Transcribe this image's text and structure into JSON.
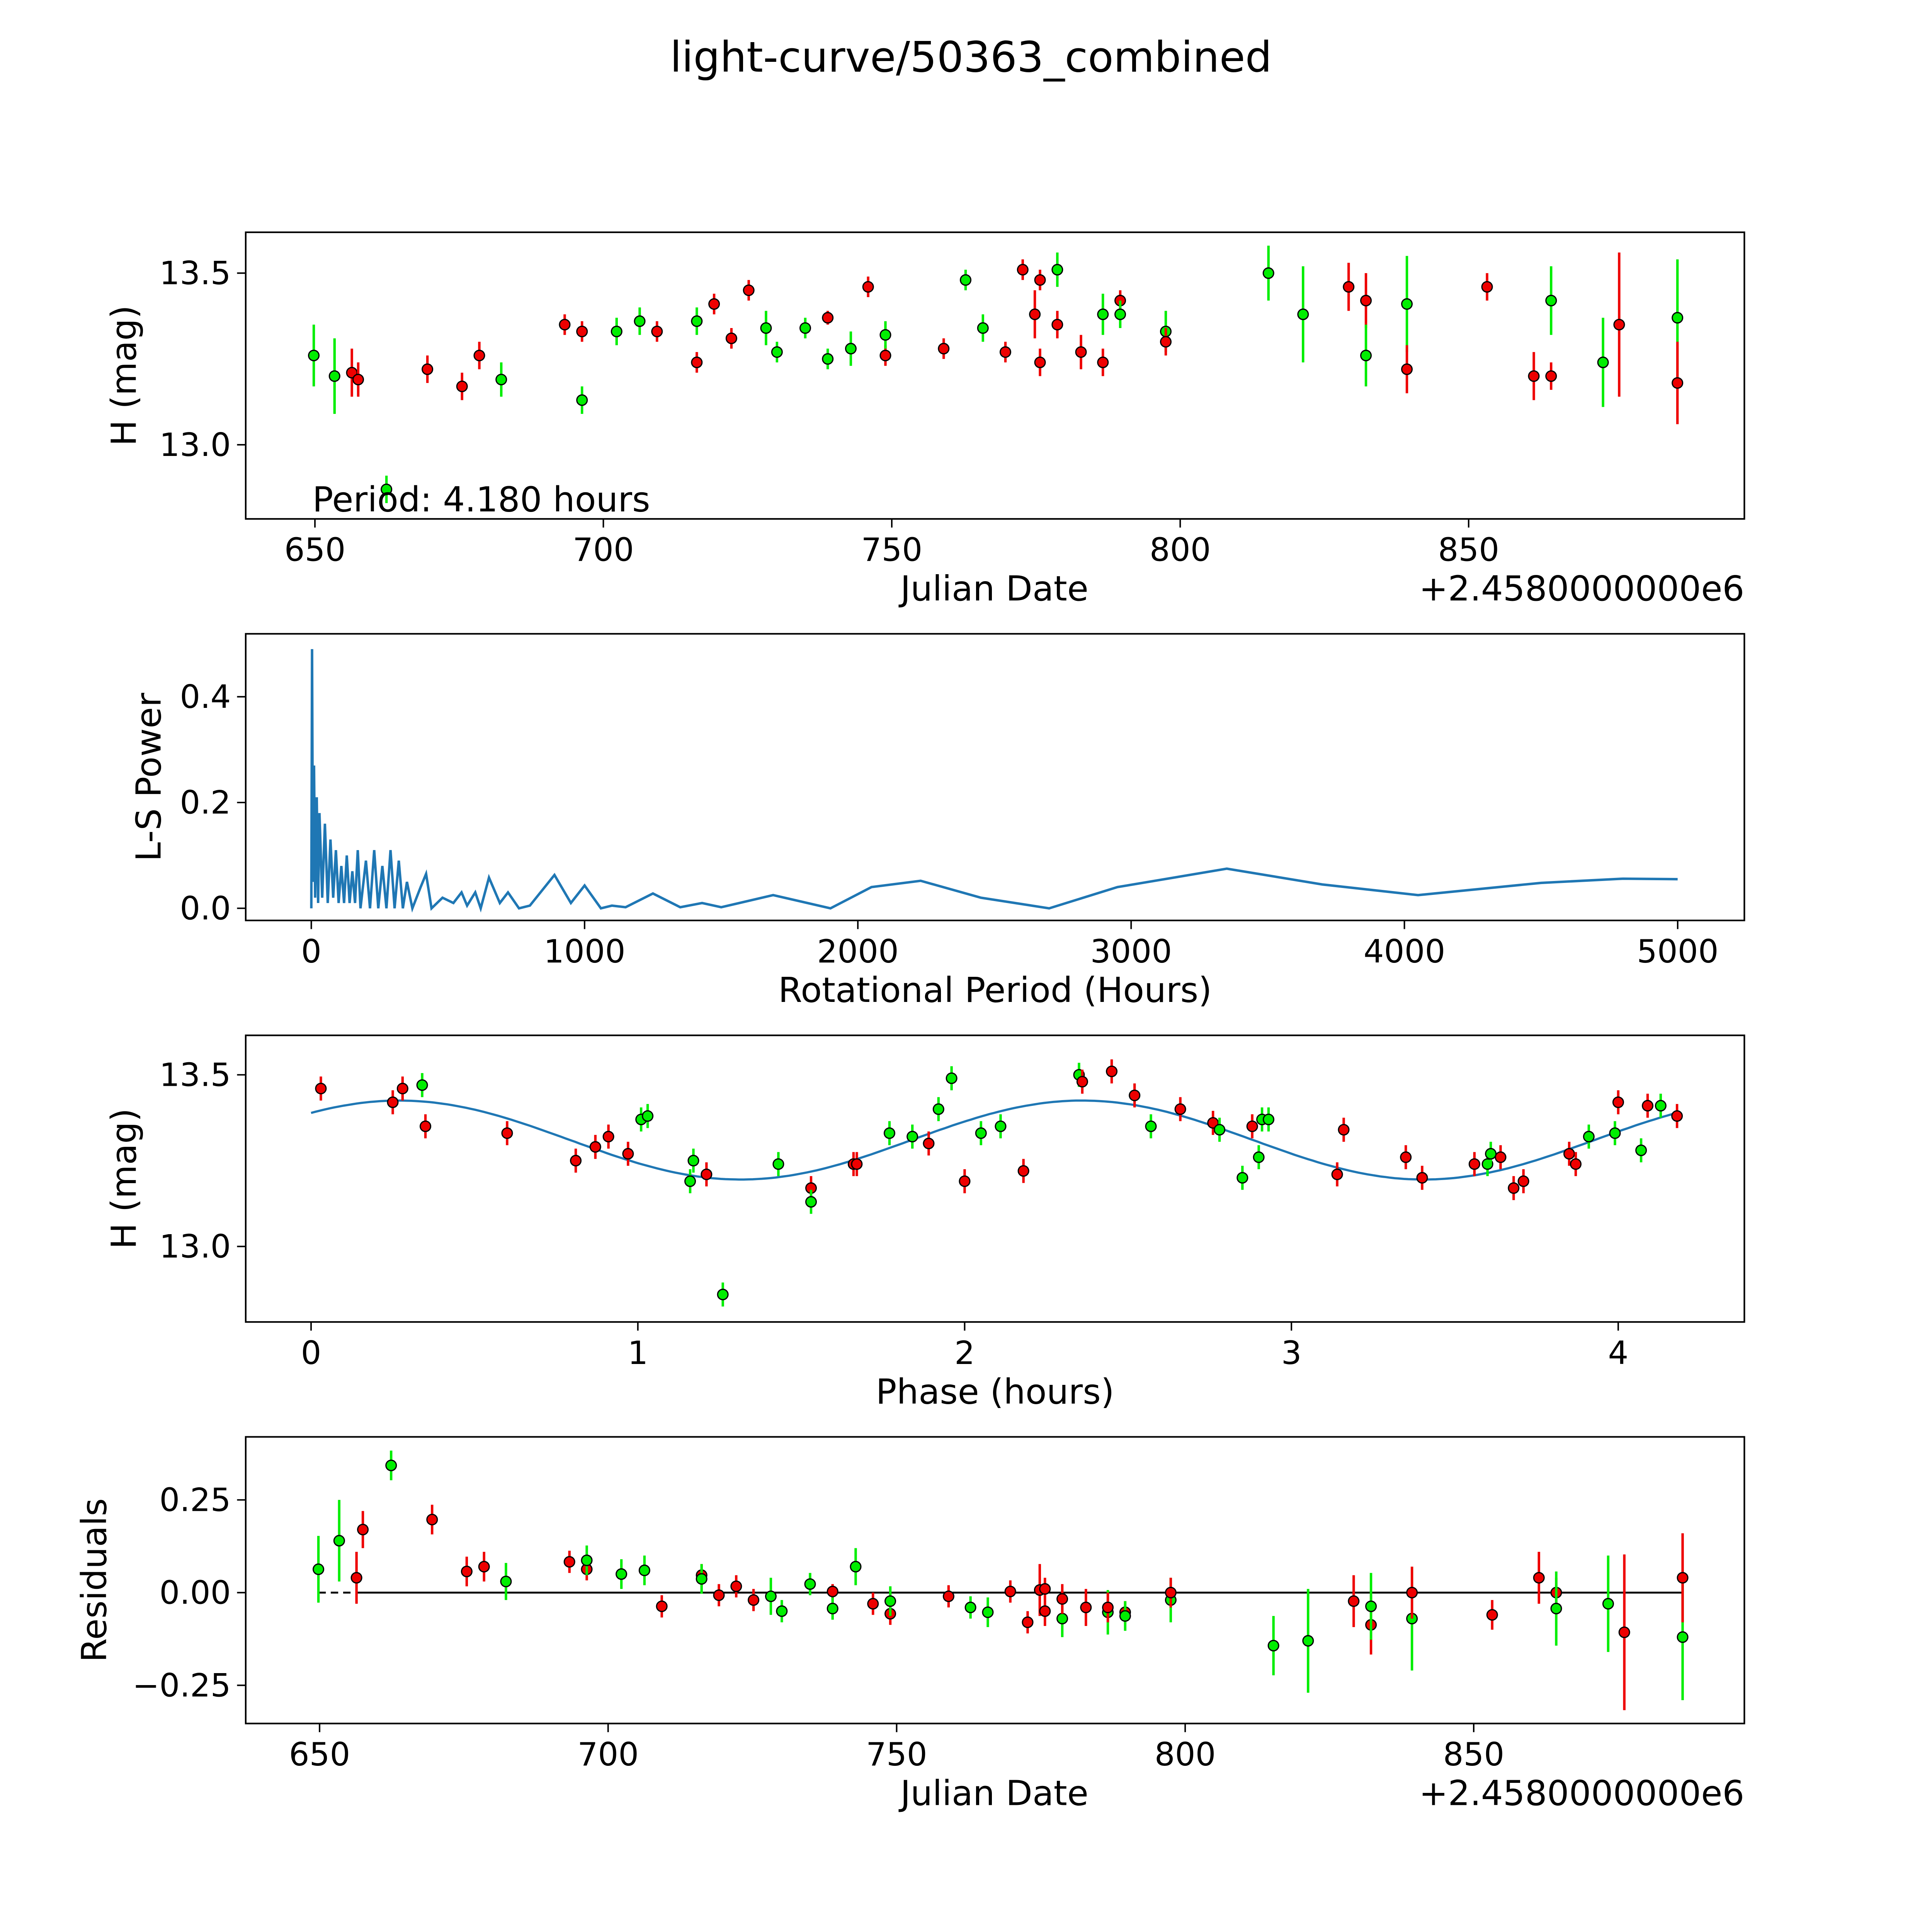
{
  "title": "light-curve/50363_combined",
  "colors": {
    "g": "#00ee00",
    "r": "#ee0000",
    "line": "#1f77b4",
    "zero": "#000000"
  },
  "chart_data": [
    {
      "id": "lightcurve",
      "type": "scatter",
      "xlabel": "Julian Date",
      "ylabel": "H (mag)",
      "offset_label": "+2.4580000000e6",
      "annotation": "Period: 4.180 hours",
      "xlim": [
        638.0,
        897.8
      ],
      "ylim": [
        12.784,
        13.619
      ],
      "xticks": [
        650,
        700,
        750,
        800,
        850
      ],
      "yticks": [
        13.0,
        13.5
      ],
      "ytick_labels": [
        "13.0",
        "13.5"
      ],
      "columns": [
        "jd_offset",
        "H",
        "err",
        "band",
        "residual"
      ],
      "points": [
        [
          649.8,
          13.26,
          0.09,
          "g",
          0.063
        ],
        [
          653.4,
          13.2,
          0.11,
          "g",
          0.14
        ],
        [
          656.4,
          13.21,
          0.07,
          "r",
          0.04
        ],
        [
          657.5,
          13.19,
          0.05,
          "r",
          0.17
        ],
        [
          662.4,
          12.87,
          0.04,
          "g",
          0.343
        ],
        [
          669.5,
          13.22,
          0.04,
          "r",
          0.197
        ],
        [
          675.5,
          13.17,
          0.04,
          "r",
          0.057
        ],
        [
          678.5,
          13.26,
          0.04,
          "r",
          0.07
        ],
        [
          682.3,
          13.19,
          0.05,
          "g",
          0.03
        ],
        [
          693.3,
          13.35,
          0.03,
          "r",
          0.083
        ],
        [
          696.3,
          13.33,
          0.03,
          "r",
          0.063
        ],
        [
          696.3,
          13.13,
          0.04,
          "g",
          0.087
        ],
        [
          702.3,
          13.33,
          0.04,
          "g",
          0.05
        ],
        [
          706.3,
          13.36,
          0.04,
          "g",
          0.06
        ],
        [
          709.3,
          13.33,
          0.03,
          "r",
          -0.037
        ],
        [
          716.2,
          13.24,
          0.03,
          "r",
          0.047
        ],
        [
          716.2,
          13.36,
          0.04,
          "g",
          0.037
        ],
        [
          719.2,
          13.41,
          0.03,
          "r",
          -0.007
        ],
        [
          722.2,
          13.31,
          0.03,
          "r",
          0.017
        ],
        [
          725.2,
          13.45,
          0.03,
          "r",
          -0.02
        ],
        [
          728.2,
          13.34,
          0.05,
          "g",
          -0.01
        ],
        [
          730.1,
          13.27,
          0.03,
          "g",
          -0.05
        ],
        [
          735.0,
          13.34,
          0.03,
          "g",
          0.023
        ],
        [
          738.9,
          13.37,
          0.02,
          "r",
          0.003
        ],
        [
          738.9,
          13.25,
          0.03,
          "g",
          -0.043
        ],
        [
          742.9,
          13.28,
          0.05,
          "g",
          0.07
        ],
        [
          745.9,
          13.46,
          0.03,
          "r",
          -0.03
        ],
        [
          748.9,
          13.26,
          0.03,
          "r",
          -0.057
        ],
        [
          748.9,
          13.32,
          0.04,
          "g",
          -0.023
        ],
        [
          759.0,
          13.28,
          0.03,
          "r",
          -0.01
        ],
        [
          762.8,
          13.48,
          0.03,
          "g",
          -0.04
        ],
        [
          765.8,
          13.34,
          0.04,
          "g",
          -0.053
        ],
        [
          769.7,
          13.27,
          0.03,
          "r",
          0.003
        ],
        [
          772.7,
          13.51,
          0.03,
          "r",
          -0.08
        ],
        [
          774.8,
          13.38,
          0.07,
          "r",
          0.007
        ],
        [
          775.7,
          13.48,
          0.03,
          "r",
          0.01
        ],
        [
          775.7,
          13.24,
          0.04,
          "r",
          -0.05
        ],
        [
          778.7,
          13.51,
          0.05,
          "g",
          -0.07
        ],
        [
          778.7,
          13.35,
          0.04,
          "r",
          -0.017
        ],
        [
          782.8,
          13.27,
          0.05,
          "r",
          -0.04
        ],
        [
          786.6,
          13.38,
          0.06,
          "g",
          -0.053
        ],
        [
          786.6,
          13.24,
          0.04,
          "r",
          -0.04
        ],
        [
          789.6,
          13.42,
          0.03,
          "r",
          -0.053
        ],
        [
          789.6,
          13.38,
          0.04,
          "g",
          -0.063
        ],
        [
          797.5,
          13.33,
          0.06,
          "g",
          -0.02
        ],
        [
          797.5,
          13.3,
          0.04,
          "r",
          0.0
        ],
        [
          815.3,
          13.5,
          0.08,
          "g",
          -0.143
        ],
        [
          821.3,
          13.38,
          0.14,
          "g",
          -0.13
        ],
        [
          829.2,
          13.46,
          0.07,
          "r",
          -0.023
        ],
        [
          832.2,
          13.42,
          0.08,
          "r",
          -0.087
        ],
        [
          832.2,
          13.26,
          0.09,
          "g",
          -0.037
        ],
        [
          839.3,
          13.41,
          0.14,
          "g",
          -0.07
        ],
        [
          839.3,
          13.22,
          0.07,
          "r",
          0.0
        ],
        [
          853.2,
          13.46,
          0.04,
          "r",
          -0.06
        ],
        [
          861.3,
          13.2,
          0.07,
          "r",
          0.04
        ],
        [
          864.3,
          13.2,
          0.04,
          "r",
          0.0
        ],
        [
          864.3,
          13.42,
          0.1,
          "g",
          -0.043
        ],
        [
          873.3,
          13.24,
          0.13,
          "g",
          -0.03
        ],
        [
          876.1,
          13.35,
          0.21,
          "r",
          -0.107
        ],
        [
          886.2,
          13.37,
          0.17,
          "g",
          -0.12
        ],
        [
          886.2,
          13.18,
          0.12,
          "r",
          0.04
        ]
      ]
    },
    {
      "id": "periodogram",
      "type": "line",
      "xlabel": "Rotational Period (Hours)",
      "ylabel": "L-S Power",
      "xlim": [
        -240,
        5244
      ],
      "ylim": [
        -0.023,
        0.519
      ],
      "xticks": [
        0,
        1000,
        2000,
        3000,
        4000,
        5000
      ],
      "yticks": [
        0.0,
        0.2,
        0.4
      ],
      "ytick_labels": [
        "0.0",
        "0.2",
        "0.4"
      ],
      "points": [
        [
          0,
          0
        ],
        [
          3,
          0.49
        ],
        [
          6,
          0.05
        ],
        [
          10,
          0.27
        ],
        [
          14,
          0.02
        ],
        [
          20,
          0.21
        ],
        [
          25,
          0.01
        ],
        [
          30,
          0.18
        ],
        [
          40,
          0.02
        ],
        [
          50,
          0.16
        ],
        [
          60,
          0.01
        ],
        [
          70,
          0.13
        ],
        [
          80,
          0.02
        ],
        [
          90,
          0.11
        ],
        [
          100,
          0.01
        ],
        [
          110,
          0.08
        ],
        [
          120,
          0.01
        ],
        [
          130,
          0.1
        ],
        [
          140,
          0.01
        ],
        [
          150,
          0.07
        ],
        [
          160,
          0.01
        ],
        [
          170,
          0.11
        ],
        [
          180,
          0.0
        ],
        [
          200,
          0.09
        ],
        [
          215,
          0.0
        ],
        [
          230,
          0.11
        ],
        [
          245,
          0.0
        ],
        [
          260,
          0.08
        ],
        [
          275,
          0.0
        ],
        [
          290,
          0.11
        ],
        [
          305,
          0.0
        ],
        [
          320,
          0.09
        ],
        [
          335,
          0.0
        ],
        [
          350,
          0.05
        ],
        [
          370,
          0.0
        ],
        [
          400,
          0.04
        ],
        [
          420,
          0.065
        ],
        [
          440,
          0.0
        ],
        [
          480,
          0.02
        ],
        [
          520,
          0.01
        ],
        [
          550,
          0.03
        ],
        [
          570,
          0.005
        ],
        [
          600,
          0.03
        ],
        [
          620,
          0.0
        ],
        [
          650,
          0.058
        ],
        [
          690,
          0.01
        ],
        [
          720,
          0.03
        ],
        [
          760,
          0.0
        ],
        [
          800,
          0.005
        ],
        [
          890,
          0.063
        ],
        [
          950,
          0.01
        ],
        [
          1000,
          0.043
        ],
        [
          1060,
          0.0
        ],
        [
          1100,
          0.005
        ],
        [
          1150,
          0.002
        ],
        [
          1250,
          0.028
        ],
        [
          1350,
          0.002
        ],
        [
          1430,
          0.01
        ],
        [
          1500,
          0.002
        ],
        [
          1690,
          0.025
        ],
        [
          1900,
          0.0
        ],
        [
          2050,
          0.04
        ],
        [
          2230,
          0.052
        ],
        [
          2450,
          0.02
        ],
        [
          2700,
          0.0
        ],
        [
          2950,
          0.04
        ],
        [
          3350,
          0.075
        ],
        [
          3700,
          0.045
        ],
        [
          4050,
          0.025
        ],
        [
          4500,
          0.048
        ],
        [
          4800,
          0.056
        ],
        [
          5000,
          0.055
        ]
      ]
    },
    {
      "id": "phased",
      "type": "scatter",
      "xlabel": "Phase (hours)",
      "ylabel": "H (mag)",
      "xlim": [
        -0.2,
        4.386
      ],
      "ylim": [
        12.78,
        13.615
      ],
      "xticks": [
        0,
        1,
        2,
        3,
        4
      ],
      "yticks": [
        13.0,
        13.5
      ],
      "ytick_labels": [
        "13.0",
        "13.5"
      ],
      "model": {
        "mean": 13.31,
        "amplitude": 0.115,
        "period": 2.09,
        "peak_phase": 0.27,
        "range": [
          0,
          4.18
        ]
      },
      "columns": [
        "phase",
        "H",
        "band"
      ],
      "points": [
        [
          0.03,
          13.46,
          "r"
        ],
        [
          0.25,
          13.42,
          "r"
        ],
        [
          0.28,
          13.46,
          "r"
        ],
        [
          0.34,
          13.47,
          "g"
        ],
        [
          0.35,
          13.35,
          "r"
        ],
        [
          0.6,
          13.33,
          "r"
        ],
        [
          0.81,
          13.25,
          "r"
        ],
        [
          0.87,
          13.29,
          "r"
        ],
        [
          0.91,
          13.32,
          "r"
        ],
        [
          0.97,
          13.27,
          "r"
        ],
        [
          1.01,
          13.37,
          "g"
        ],
        [
          1.03,
          13.38,
          "g"
        ],
        [
          1.16,
          13.19,
          "g"
        ],
        [
          1.17,
          13.25,
          "g"
        ],
        [
          1.21,
          13.21,
          "r"
        ],
        [
          1.26,
          12.86,
          "g"
        ],
        [
          1.43,
          13.24,
          "g"
        ],
        [
          1.53,
          13.17,
          "r"
        ],
        [
          1.53,
          13.13,
          "g"
        ],
        [
          1.66,
          13.24,
          "r"
        ],
        [
          1.67,
          13.24,
          "r"
        ],
        [
          1.77,
          13.33,
          "g"
        ],
        [
          1.84,
          13.32,
          "g"
        ],
        [
          1.89,
          13.3,
          "r"
        ],
        [
          1.92,
          13.4,
          "g"
        ],
        [
          1.96,
          13.49,
          "g"
        ],
        [
          2.0,
          13.19,
          "r"
        ],
        [
          2.05,
          13.33,
          "g"
        ],
        [
          2.11,
          13.35,
          "g"
        ],
        [
          2.18,
          13.22,
          "r"
        ],
        [
          2.35,
          13.5,
          "g"
        ],
        [
          2.36,
          13.48,
          "r"
        ],
        [
          2.45,
          13.51,
          "r"
        ],
        [
          2.52,
          13.44,
          "r"
        ],
        [
          2.57,
          13.35,
          "g"
        ],
        [
          2.66,
          13.4,
          "r"
        ],
        [
          2.76,
          13.36,
          "r"
        ],
        [
          2.78,
          13.34,
          "g"
        ],
        [
          2.85,
          13.2,
          "g"
        ],
        [
          2.88,
          13.35,
          "r"
        ],
        [
          2.9,
          13.26,
          "g"
        ],
        [
          2.91,
          13.37,
          "g"
        ],
        [
          2.93,
          13.37,
          "g"
        ],
        [
          3.14,
          13.21,
          "r"
        ],
        [
          3.16,
          13.34,
          "r"
        ],
        [
          3.35,
          13.26,
          "r"
        ],
        [
          3.4,
          13.2,
          "r"
        ],
        [
          3.56,
          13.24,
          "r"
        ],
        [
          3.6,
          13.24,
          "g"
        ],
        [
          3.61,
          13.27,
          "g"
        ],
        [
          3.64,
          13.26,
          "r"
        ],
        [
          3.68,
          13.17,
          "r"
        ],
        [
          3.71,
          13.19,
          "r"
        ],
        [
          3.85,
          13.27,
          "r"
        ],
        [
          3.87,
          13.24,
          "r"
        ],
        [
          3.91,
          13.32,
          "g"
        ],
        [
          3.99,
          13.33,
          "g"
        ],
        [
          4.0,
          13.42,
          "r"
        ],
        [
          4.07,
          13.28,
          "g"
        ],
        [
          4.09,
          13.41,
          "r"
        ],
        [
          4.13,
          13.41,
          "g"
        ],
        [
          4.18,
          13.38,
          "r"
        ]
      ]
    },
    {
      "id": "residuals",
      "type": "scatter",
      "xlabel": "Julian Date",
      "ylabel": "Residuals",
      "offset_label": "+2.4580000000e6",
      "xlim": [
        637.2,
        896.9
      ],
      "ylim": [
        -0.353,
        0.42
      ],
      "xticks": [
        650,
        700,
        750,
        800,
        850
      ],
      "yticks": [
        -0.25,
        0.0,
        0.25
      ],
      "ytick_labels": [
        "−0.25",
        "0.00",
        "0.25"
      ]
    }
  ]
}
